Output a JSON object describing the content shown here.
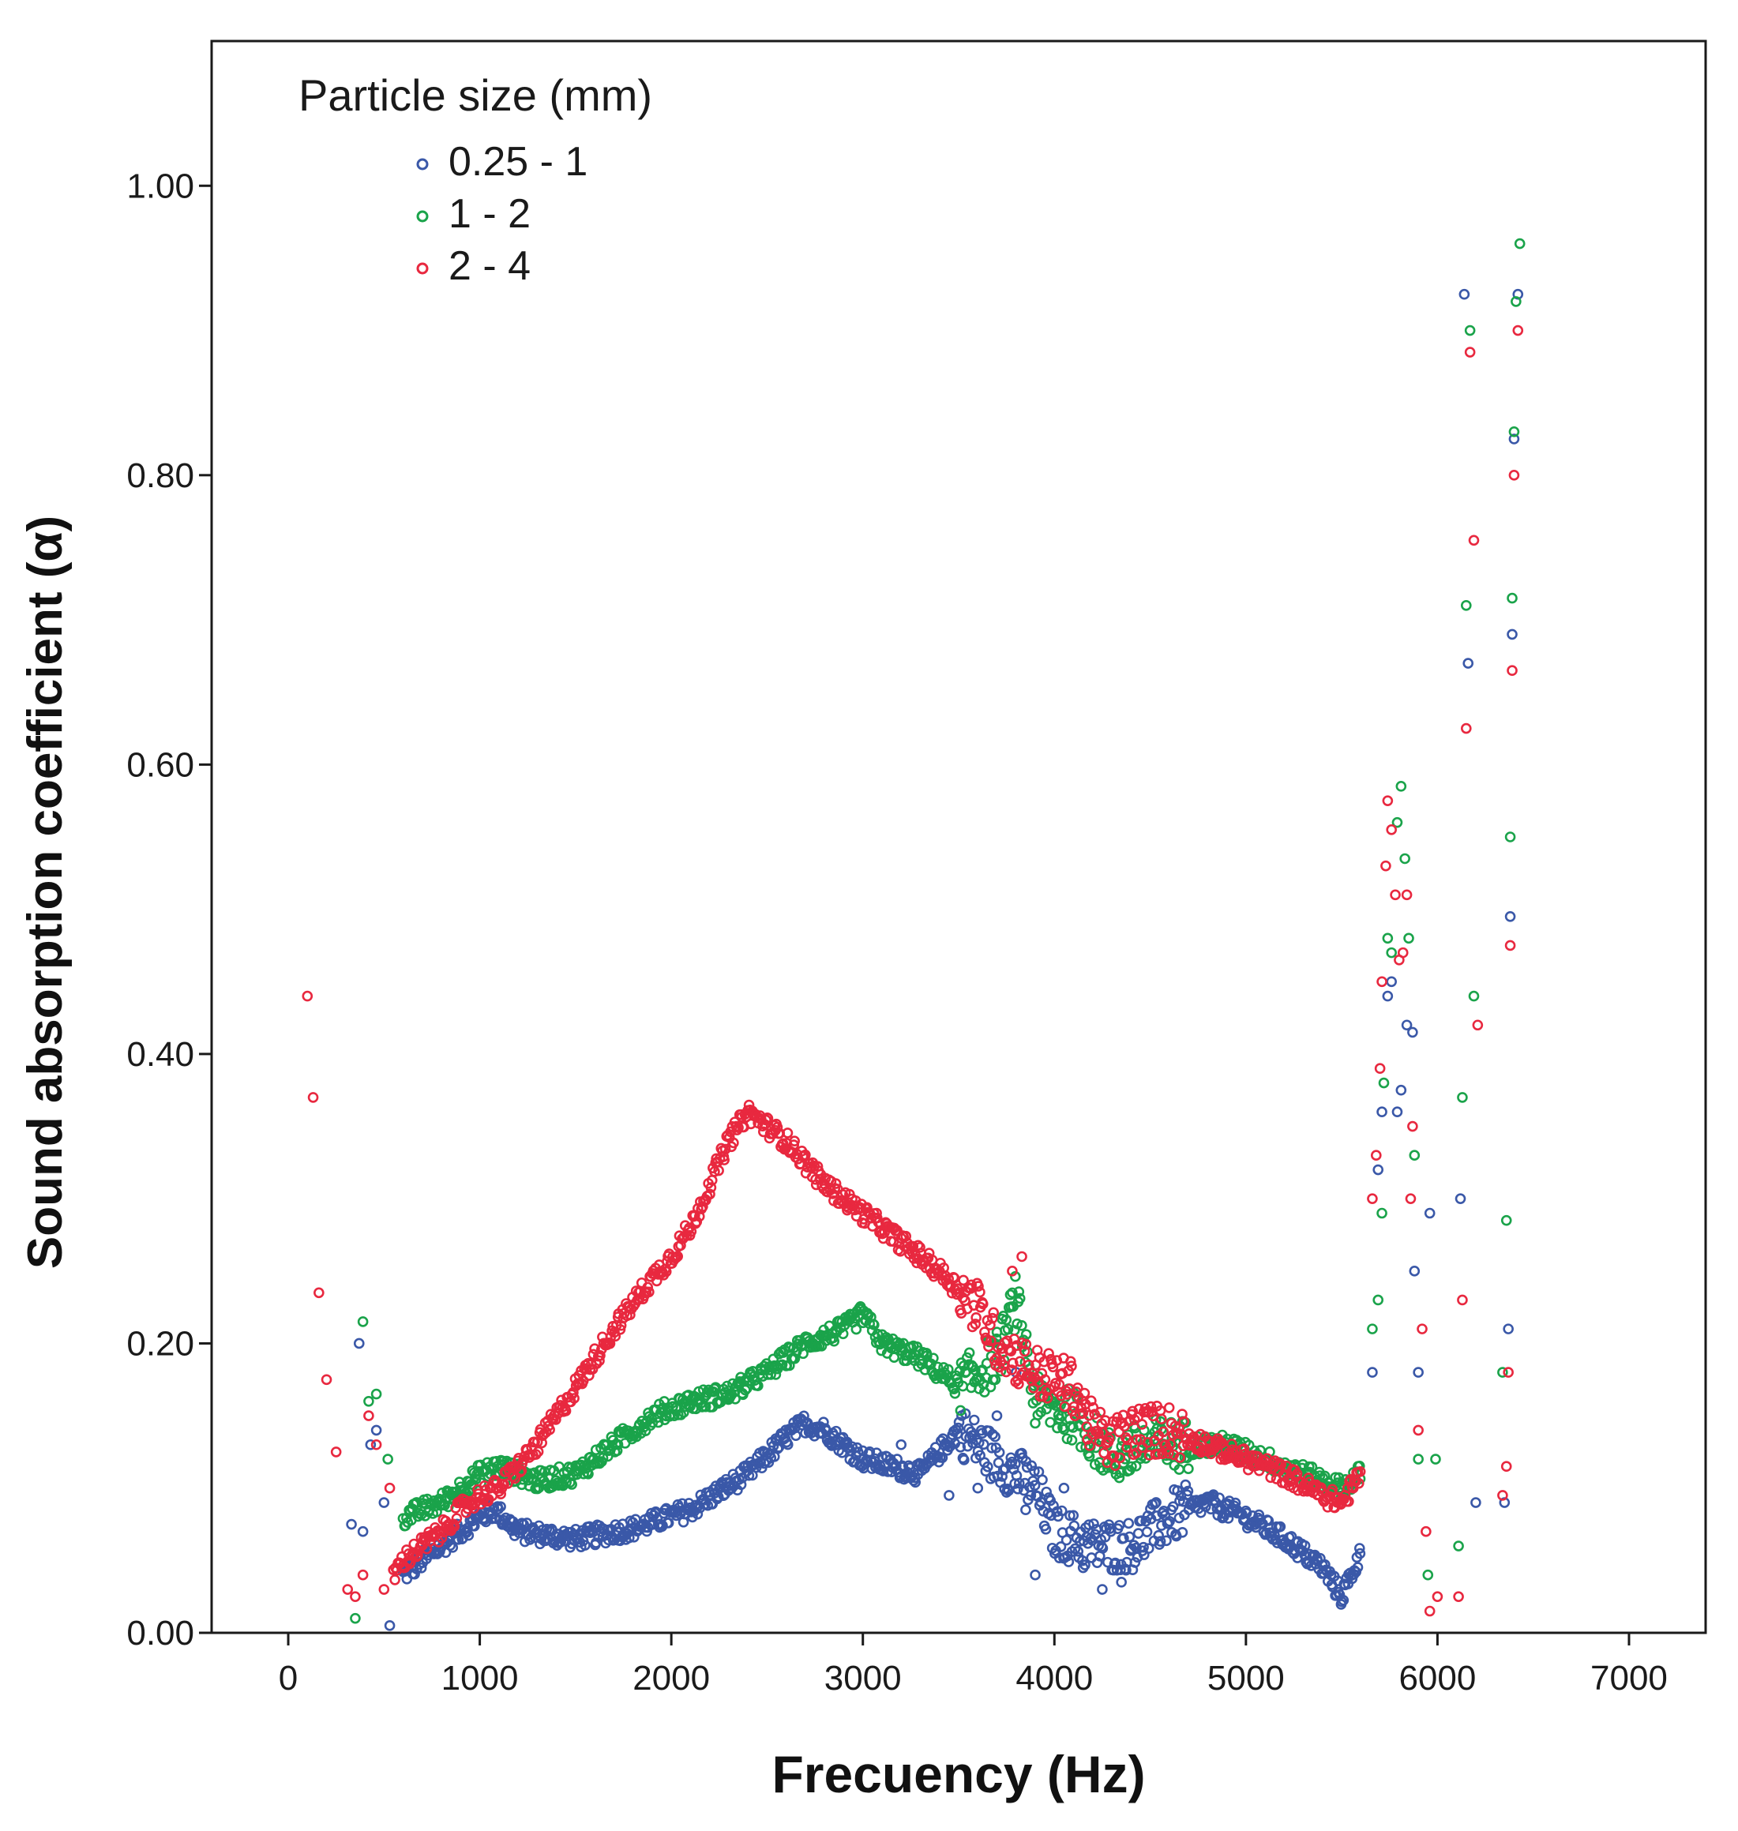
{
  "chart_data": {
    "type": "scatter",
    "title": "",
    "xlabel": "Frecuency (Hz)",
    "ylabel": "Sound absorption coefficient (α)",
    "xlim": [
      -400,
      7400
    ],
    "ylim": [
      0,
      1.1
    ],
    "xticks": [
      0,
      1000,
      2000,
      3000,
      4000,
      5000,
      6000,
      7000
    ],
    "xtick_labels": [
      "0",
      "1000",
      "2000",
      "3000",
      "4000",
      "5000",
      "6000",
      "7000"
    ],
    "yticks": [
      0,
      0.2,
      0.4,
      0.6,
      0.8,
      1.0
    ],
    "ytick_labels": [
      "0.00",
      "0.20",
      "0.40",
      "0.60",
      "0.80",
      "1.00"
    ],
    "grid": false,
    "marker": "open-circle",
    "legend": {
      "title": "Particle size (mm)",
      "position": "top-left"
    },
    "series": [
      {
        "name": "0.25 - 1",
        "color": "#3a58a8",
        "curve": [
          [
            600,
            0.04
          ],
          [
            800,
            0.06
          ],
          [
            1000,
            0.08
          ],
          [
            1080,
            0.085
          ],
          [
            1200,
            0.07
          ],
          [
            1500,
            0.065
          ],
          [
            1800,
            0.072
          ],
          [
            2100,
            0.085
          ],
          [
            2400,
            0.11
          ],
          [
            2600,
            0.135
          ],
          [
            2700,
            0.145
          ],
          [
            2800,
            0.14
          ],
          [
            3000,
            0.12
          ],
          [
            3300,
            0.11
          ],
          [
            3500,
            0.14
          ],
          [
            3700,
            0.12
          ],
          [
            3900,
            0.1
          ],
          [
            4000,
            0.07
          ],
          [
            4200,
            0.06
          ],
          [
            4400,
            0.06
          ],
          [
            4600,
            0.08
          ],
          [
            4800,
            0.09
          ],
          [
            5000,
            0.08
          ],
          [
            5200,
            0.065
          ],
          [
            5400,
            0.045
          ],
          [
            5500,
            0.025
          ],
          [
            5600,
            0.055
          ]
        ],
        "scatter": [
          [
            330,
            0.075
          ],
          [
            370,
            0.2
          ],
          [
            390,
            0.07
          ],
          [
            430,
            0.13
          ],
          [
            460,
            0.14
          ],
          [
            500,
            0.09
          ],
          [
            530,
            0.005
          ],
          [
            3200,
            0.13
          ],
          [
            3450,
            0.095
          ],
          [
            3600,
            0.1
          ],
          [
            3700,
            0.15
          ],
          [
            3800,
            0.18
          ],
          [
            3850,
            0.085
          ],
          [
            3900,
            0.04
          ],
          [
            4050,
            0.1
          ],
          [
            4150,
            0.045
          ],
          [
            4250,
            0.03
          ],
          [
            4350,
            0.035
          ],
          [
            5660,
            0.18
          ],
          [
            5690,
            0.32
          ],
          [
            5710,
            0.36
          ],
          [
            5740,
            0.44
          ],
          [
            5760,
            0.45
          ],
          [
            5790,
            0.36
          ],
          [
            5810,
            0.375
          ],
          [
            5840,
            0.42
          ],
          [
            5870,
            0.415
          ],
          [
            5880,
            0.25
          ],
          [
            5900,
            0.18
          ],
          [
            5960,
            0.29
          ],
          [
            6120,
            0.3
          ],
          [
            6140,
            0.925
          ],
          [
            6160,
            0.67
          ],
          [
            6200,
            0.09
          ],
          [
            6350,
            0.09
          ],
          [
            6370,
            0.21
          ],
          [
            6380,
            0.495
          ],
          [
            6390,
            0.69
          ],
          [
            6400,
            0.825
          ],
          [
            6420,
            0.925
          ]
        ]
      },
      {
        "name": "1 - 2",
        "color": "#1aa34a",
        "curve": [
          [
            600,
            0.08
          ],
          [
            800,
            0.09
          ],
          [
            1000,
            0.11
          ],
          [
            1100,
            0.115
          ],
          [
            1300,
            0.105
          ],
          [
            1500,
            0.11
          ],
          [
            1700,
            0.13
          ],
          [
            1900,
            0.15
          ],
          [
            2100,
            0.16
          ],
          [
            2300,
            0.165
          ],
          [
            2500,
            0.18
          ],
          [
            2700,
            0.2
          ],
          [
            2900,
            0.21
          ],
          [
            3000,
            0.22
          ],
          [
            3100,
            0.2
          ],
          [
            3300,
            0.19
          ],
          [
            3500,
            0.17
          ],
          [
            3700,
            0.19
          ],
          [
            3800,
            0.23
          ],
          [
            3900,
            0.16
          ],
          [
            4100,
            0.15
          ],
          [
            4300,
            0.12
          ],
          [
            4500,
            0.13
          ],
          [
            4700,
            0.13
          ],
          [
            4900,
            0.13
          ],
          [
            5100,
            0.12
          ],
          [
            5300,
            0.11
          ],
          [
            5500,
            0.1
          ],
          [
            5600,
            0.11
          ]
        ],
        "scatter": [
          [
            350,
            0.01
          ],
          [
            390,
            0.215
          ],
          [
            420,
            0.16
          ],
          [
            460,
            0.165
          ],
          [
            520,
            0.12
          ],
          [
            5660,
            0.21
          ],
          [
            5690,
            0.23
          ],
          [
            5710,
            0.29
          ],
          [
            5720,
            0.38
          ],
          [
            5740,
            0.48
          ],
          [
            5760,
            0.47
          ],
          [
            5790,
            0.56
          ],
          [
            5810,
            0.585
          ],
          [
            5830,
            0.535
          ],
          [
            5850,
            0.48
          ],
          [
            5880,
            0.33
          ],
          [
            5900,
            0.12
          ],
          [
            5950,
            0.04
          ],
          [
            5990,
            0.12
          ],
          [
            6110,
            0.06
          ],
          [
            6130,
            0.37
          ],
          [
            6150,
            0.71
          ],
          [
            6170,
            0.9
          ],
          [
            6190,
            0.44
          ],
          [
            6340,
            0.18
          ],
          [
            6360,
            0.285
          ],
          [
            6380,
            0.55
          ],
          [
            6390,
            0.715
          ],
          [
            6400,
            0.83
          ],
          [
            6410,
            0.92
          ],
          [
            6430,
            0.96
          ]
        ]
      },
      {
        "name": "2 - 4",
        "color": "#e8283f",
        "curve": [
          [
            550,
            0.04
          ],
          [
            600,
            0.05
          ],
          [
            700,
            0.06
          ],
          [
            800,
            0.07
          ],
          [
            900,
            0.085
          ],
          [
            1000,
            0.095
          ],
          [
            1100,
            0.1
          ],
          [
            1300,
            0.13
          ],
          [
            1500,
            0.17
          ],
          [
            1700,
            0.21
          ],
          [
            1900,
            0.245
          ],
          [
            2000,
            0.26
          ],
          [
            2100,
            0.28
          ],
          [
            2200,
            0.31
          ],
          [
            2300,
            0.34
          ],
          [
            2400,
            0.36
          ],
          [
            2500,
            0.35
          ],
          [
            2600,
            0.34
          ],
          [
            2800,
            0.31
          ],
          [
            3000,
            0.29
          ],
          [
            3200,
            0.27
          ],
          [
            3400,
            0.25
          ],
          [
            3600,
            0.225
          ],
          [
            3700,
            0.2
          ],
          [
            3900,
            0.18
          ],
          [
            4000,
            0.175
          ],
          [
            4100,
            0.17
          ],
          [
            4200,
            0.14
          ],
          [
            4300,
            0.13
          ],
          [
            4400,
            0.14
          ],
          [
            4600,
            0.14
          ],
          [
            4800,
            0.13
          ],
          [
            5000,
            0.12
          ],
          [
            5200,
            0.11
          ],
          [
            5400,
            0.095
          ],
          [
            5500,
            0.09
          ],
          [
            5600,
            0.11
          ]
        ],
        "scatter": [
          [
            100,
            0.44
          ],
          [
            130,
            0.37
          ],
          [
            160,
            0.235
          ],
          [
            200,
            0.175
          ],
          [
            250,
            0.125
          ],
          [
            310,
            0.03
          ],
          [
            350,
            0.025
          ],
          [
            390,
            0.04
          ],
          [
            420,
            0.15
          ],
          [
            460,
            0.13
          ],
          [
            500,
            0.03
          ],
          [
            530,
            0.1
          ],
          [
            3780,
            0.25
          ],
          [
            3830,
            0.26
          ],
          [
            5660,
            0.3
          ],
          [
            5680,
            0.33
          ],
          [
            5700,
            0.39
          ],
          [
            5710,
            0.45
          ],
          [
            5730,
            0.53
          ],
          [
            5740,
            0.575
          ],
          [
            5760,
            0.555
          ],
          [
            5780,
            0.51
          ],
          [
            5800,
            0.465
          ],
          [
            5820,
            0.47
          ],
          [
            5840,
            0.51
          ],
          [
            5860,
            0.3
          ],
          [
            5870,
            0.35
          ],
          [
            5900,
            0.14
          ],
          [
            5920,
            0.21
          ],
          [
            5940,
            0.07
          ],
          [
            5960,
            0.015
          ],
          [
            6000,
            0.025
          ],
          [
            6110,
            0.025
          ],
          [
            6130,
            0.23
          ],
          [
            6150,
            0.625
          ],
          [
            6170,
            0.885
          ],
          [
            6190,
            0.755
          ],
          [
            6210,
            0.42
          ],
          [
            6340,
            0.095
          ],
          [
            6360,
            0.115
          ],
          [
            6370,
            0.18
          ],
          [
            6380,
            0.475
          ],
          [
            6390,
            0.665
          ],
          [
            6400,
            0.8
          ],
          [
            6420,
            0.9
          ]
        ]
      }
    ]
  }
}
